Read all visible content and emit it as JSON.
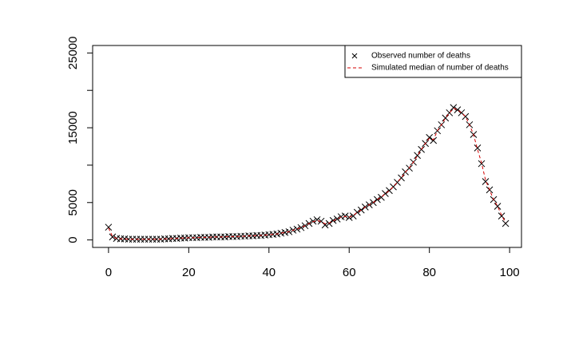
{
  "chart_data": {
    "type": "line",
    "x": [
      0,
      1,
      2,
      3,
      4,
      5,
      6,
      7,
      8,
      9,
      10,
      11,
      12,
      13,
      14,
      15,
      16,
      17,
      18,
      19,
      20,
      21,
      22,
      23,
      24,
      25,
      26,
      27,
      28,
      29,
      30,
      31,
      32,
      33,
      34,
      35,
      36,
      37,
      38,
      39,
      40,
      41,
      42,
      43,
      44,
      45,
      46,
      47,
      48,
      49,
      50,
      51,
      52,
      53,
      54,
      55,
      56,
      57,
      58,
      59,
      60,
      61,
      62,
      63,
      64,
      65,
      66,
      67,
      68,
      69,
      70,
      71,
      72,
      73,
      74,
      75,
      76,
      77,
      78,
      79,
      80,
      81,
      82,
      83,
      84,
      85,
      86,
      87,
      88,
      89,
      90,
      91,
      92,
      93,
      94,
      95,
      96,
      97,
      98,
      99
    ],
    "series": [
      {
        "name": "Observed number of deaths",
        "color": "#000000",
        "type": "scatter",
        "values": [
          1700,
          400,
          200,
          150,
          150,
          100,
          100,
          100,
          100,
          100,
          100,
          100,
          100,
          100,
          150,
          150,
          200,
          200,
          250,
          250,
          300,
          300,
          300,
          350,
          350,
          350,
          400,
          400,
          400,
          400,
          450,
          450,
          450,
          500,
          500,
          550,
          550,
          600,
          600,
          650,
          700,
          750,
          800,
          900,
          1000,
          1100,
          1300,
          1450,
          1650,
          1900,
          2200,
          2500,
          2700,
          2500,
          2000,
          2200,
          2600,
          2800,
          3100,
          3200,
          3000,
          3200,
          3700,
          4000,
          4400,
          4700,
          5000,
          5400,
          5700,
          6200,
          6600,
          7100,
          7700,
          8300,
          9100,
          9600,
          10400,
          11300,
          12100,
          12900,
          13700,
          13300,
          14600,
          15400,
          16300,
          17000,
          17700,
          17400,
          17000,
          16500,
          15400,
          14100,
          12300,
          10200,
          7800,
          6700,
          5400,
          4500,
          3200,
          2200
        ]
      },
      {
        "name": "Simulated median of number of deaths",
        "color": "#d40000",
        "type": "line",
        "values": [
          1600,
          450,
          200,
          150,
          150,
          100,
          100,
          100,
          100,
          100,
          100,
          100,
          100,
          100,
          150,
          150,
          200,
          200,
          250,
          250,
          300,
          300,
          300,
          350,
          350,
          350,
          400,
          400,
          400,
          400,
          450,
          450,
          450,
          500,
          500,
          550,
          550,
          600,
          600,
          650,
          700,
          750,
          800,
          900,
          1000,
          1100,
          1300,
          1450,
          1650,
          1900,
          2200,
          2450,
          2600,
          2450,
          2150,
          2250,
          2550,
          2800,
          3050,
          3150,
          3050,
          3250,
          3700,
          4000,
          4400,
          4700,
          5000,
          5400,
          5700,
          6200,
          6600,
          7100,
          7700,
          8300,
          9050,
          9650,
          10400,
          11250,
          12100,
          12900,
          13600,
          13400,
          14600,
          15400,
          16300,
          17000,
          17600,
          17400,
          17000,
          16500,
          15400,
          14100,
          12100,
          10300,
          8000,
          6700,
          5400,
          4500,
          3300,
          2300
        ]
      }
    ],
    "xlim": [
      -3.96,
      102.96
    ],
    "xticks": [
      0,
      20,
      40,
      60,
      80,
      100
    ],
    "ylim": [
      -1000,
      26000
    ],
    "yticks": [
      0,
      5000,
      {
        "value": 10000,
        "label": null
      },
      15000,
      {
        "value": 20000,
        "label": null
      },
      25000
    ],
    "legend": "topright"
  }
}
